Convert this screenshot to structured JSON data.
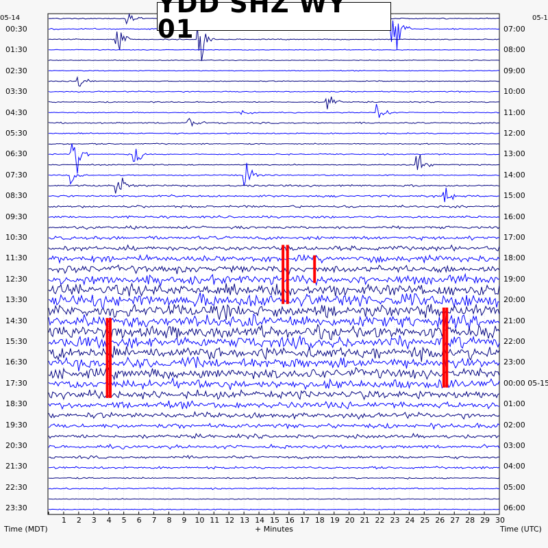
{
  "chart_data": {
    "type": "line",
    "title": "YDD SHZ WY 01",
    "xlabel": "+ Minutes",
    "ylabel_left": "Time (MDT)",
    "ylabel_right": "Time (UTC)",
    "date_left": "05-14",
    "date_right": "05-1",
    "xlim": [
      0,
      30
    ],
    "x_ticks": [
      "1",
      "2",
      "3",
      "4",
      "5",
      "6",
      "7",
      "8",
      "9",
      "10",
      "11",
      "12",
      "13",
      "14",
      "15",
      "16",
      "17",
      "18",
      "19",
      "20",
      "21",
      "22",
      "23",
      "24",
      "25",
      "26",
      "27",
      "28",
      "29",
      "30"
    ],
    "left_ticks": [
      "00:30",
      "01:30",
      "02:30",
      "03:30",
      "04:30",
      "05:30",
      "06:30",
      "07:30",
      "08:30",
      "09:30",
      "10:30",
      "11:30",
      "12:30",
      "13:30",
      "14:30",
      "15:30",
      "16:30",
      "17:30",
      "18:30",
      "19:30",
      "20:30",
      "21:30",
      "22:30",
      "23:30"
    ],
    "right_ticks": [
      "07:00",
      "08:00",
      "09:00",
      "10:00",
      "11:00",
      "12:00",
      "13:00",
      "14:00",
      "15:00",
      "16:00",
      "17:00",
      "18:00",
      "19:00",
      "20:00",
      "21:00",
      "22:00",
      "23:00",
      "00:00 05-15",
      "01:00",
      "02:00",
      "03:00",
      "04:00",
      "05:00",
      "06:00"
    ],
    "rows": 48,
    "row_minutes": 30,
    "series_colors": [
      "#000080",
      "#0000ff"
    ],
    "clip_color": "#ff0000",
    "row_amplitude": [
      0.15,
      0.15,
      0.12,
      0.1,
      0.1,
      0.1,
      0.12,
      0.15,
      0.14,
      0.12,
      0.18,
      0.18,
      0.15,
      0.15,
      0.15,
      0.15,
      0.25,
      0.25,
      0.3,
      0.3,
      0.35,
      0.45,
      0.6,
      0.9,
      0.95,
      1.2,
      1.5,
      1.8,
      1.7,
      1.6,
      1.7,
      1.5,
      1.6,
      1.4,
      1.3,
      1.2,
      1.1,
      0.9,
      0.75,
      0.6,
      0.5,
      0.45,
      0.35,
      0.3,
      0.2,
      0.18,
      0.12,
      0.12
    ],
    "events": [
      {
        "row": 0,
        "minute": 5.2,
        "amp": 4
      },
      {
        "row": 2,
        "minute": 10.0,
        "amp": 9
      },
      {
        "row": 1,
        "minute": 22.9,
        "amp": 14
      },
      {
        "row": 2,
        "minute": 4.5,
        "amp": 8
      },
      {
        "row": 6,
        "minute": 2.0,
        "amp": 4
      },
      {
        "row": 8,
        "minute": 18.5,
        "amp": 6
      },
      {
        "row": 9,
        "minute": 12.9,
        "amp": 3
      },
      {
        "row": 9,
        "minute": 21.9,
        "amp": 6
      },
      {
        "row": 10,
        "minute": 9.2,
        "amp": 6
      },
      {
        "row": 13,
        "minute": 1.5,
        "amp": 20
      },
      {
        "row": 13,
        "minute": 5.7,
        "amp": 7
      },
      {
        "row": 14,
        "minute": 24.5,
        "amp": 6
      },
      {
        "row": 15,
        "minute": 1.5,
        "amp": 6
      },
      {
        "row": 15,
        "minute": 13.1,
        "amp": 7
      },
      {
        "row": 16,
        "minute": 4.5,
        "amp": 7
      },
      {
        "row": 17,
        "minute": 26.3,
        "amp": 8
      }
    ],
    "clip_bars": [
      {
        "minute": 3.9,
        "start_row": 29,
        "end_row": 36
      },
      {
        "minute": 4.1,
        "start_row": 29,
        "end_row": 36
      },
      {
        "minute": 15.6,
        "start_row": 22,
        "end_row": 27
      },
      {
        "minute": 15.9,
        "start_row": 22,
        "end_row": 27
      },
      {
        "minute": 17.7,
        "start_row": 23,
        "end_row": 25
      },
      {
        "minute": 26.3,
        "start_row": 28,
        "end_row": 35
      },
      {
        "minute": 26.5,
        "start_row": 28,
        "end_row": 35
      }
    ],
    "grid": true
  }
}
